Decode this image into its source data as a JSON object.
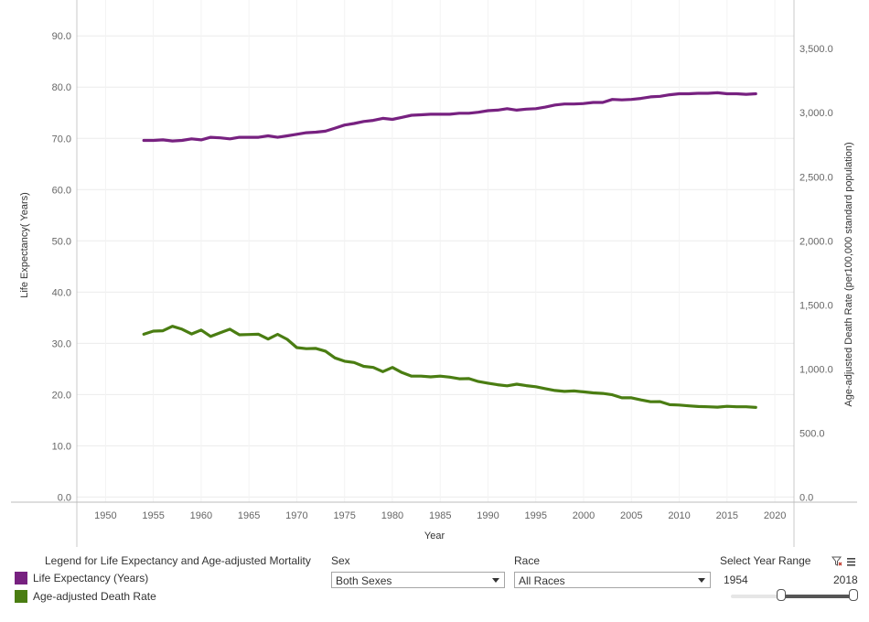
{
  "chart_data": {
    "type": "line",
    "x_axis": {
      "label": "Year",
      "range": [
        1947,
        2022
      ],
      "ticks": [
        1950,
        1955,
        1960,
        1965,
        1970,
        1975,
        1980,
        1985,
        1990,
        1995,
        2000,
        2005,
        2010,
        2015,
        2020
      ]
    },
    "y_left": {
      "label": "Life Expectancy( Years)",
      "range": [
        -1,
        97
      ],
      "ticks": [
        0,
        10,
        20,
        30,
        40,
        50,
        60,
        70,
        80,
        90
      ],
      "tick_labels": [
        "0.0",
        "10.0",
        "20.0",
        "30.0",
        "40.0",
        "50.0",
        "60.0",
        "70.0",
        "80.0",
        "90.0"
      ]
    },
    "y_right": {
      "label": "Age-adjusted Death Rate (per100,000 standard population)",
      "range": [
        -40,
        3880
      ],
      "ticks": [
        0,
        500,
        1000,
        1500,
        2000,
        2500,
        3000,
        3500
      ],
      "tick_labels": [
        "0.0",
        "500.0",
        "1,000.0",
        "1,500.0",
        "2,000.0",
        "2,500.0",
        "3,000.0",
        "3,500.0"
      ]
    },
    "series": [
      {
        "name": "Life Expectancy (Years)",
        "axis": "left",
        "color": "#772180",
        "x": [
          1954,
          1955,
          1956,
          1957,
          1958,
          1959,
          1960,
          1961,
          1962,
          1963,
          1964,
          1965,
          1966,
          1967,
          1968,
          1969,
          1970,
          1971,
          1972,
          1973,
          1974,
          1975,
          1976,
          1977,
          1978,
          1979,
          1980,
          1981,
          1982,
          1983,
          1984,
          1985,
          1986,
          1987,
          1988,
          1989,
          1990,
          1991,
          1992,
          1993,
          1994,
          1995,
          1996,
          1997,
          1998,
          1999,
          2000,
          2001,
          2002,
          2003,
          2004,
          2005,
          2006,
          2007,
          2008,
          2009,
          2010,
          2011,
          2012,
          2013,
          2014,
          2015,
          2016,
          2017,
          2018
        ],
        "values": [
          69.6,
          69.6,
          69.7,
          69.5,
          69.6,
          69.9,
          69.7,
          70.2,
          70.1,
          69.9,
          70.2,
          70.2,
          70.2,
          70.5,
          70.2,
          70.5,
          70.8,
          71.1,
          71.2,
          71.4,
          72.0,
          72.6,
          72.9,
          73.3,
          73.5,
          73.9,
          73.7,
          74.1,
          74.5,
          74.6,
          74.7,
          74.7,
          74.7,
          74.9,
          74.9,
          75.1,
          75.4,
          75.5,
          75.8,
          75.5,
          75.7,
          75.8,
          76.1,
          76.5,
          76.7,
          76.7,
          76.8,
          77.0,
          77.0,
          77.6,
          77.5,
          77.6,
          77.8,
          78.1,
          78.2,
          78.5,
          78.7,
          78.7,
          78.8,
          78.8,
          78.9,
          78.7,
          78.7,
          78.6,
          78.7
        ]
      },
      {
        "name": "Age-adjusted Death Rate",
        "axis": "right",
        "color": "#4a7d12",
        "x": [
          1954,
          1955,
          1956,
          1957,
          1958,
          1959,
          1960,
          1961,
          1962,
          1963,
          1964,
          1965,
          1966,
          1967,
          1968,
          1969,
          1970,
          1971,
          1972,
          1973,
          1974,
          1975,
          1976,
          1977,
          1978,
          1979,
          1980,
          1981,
          1982,
          1983,
          1984,
          1985,
          1986,
          1987,
          1988,
          1989,
          1990,
          1991,
          1992,
          1993,
          1994,
          1995,
          1996,
          1997,
          1998,
          1999,
          2000,
          2001,
          2002,
          2003,
          2004,
          2005,
          2006,
          2007,
          2008,
          2009,
          2010,
          2011,
          2012,
          2013,
          2014,
          2015,
          2016,
          2017,
          2018
        ],
        "values": [
          1271,
          1295,
          1298,
          1333,
          1310,
          1273,
          1304,
          1254,
          1283,
          1310,
          1267,
          1269,
          1271,
          1233,
          1270,
          1231,
          1167,
          1158,
          1160,
          1139,
          1086,
          1060,
          1050,
          1020,
          1012,
          979,
          1012,
          972,
          944,
          944,
          938,
          944,
          936,
          923,
          925,
          902,
          889,
          877,
          868,
          881,
          870,
          861,
          846,
          832,
          825,
          828,
          821,
          813,
          809,
          798,
          775,
          775,
          758,
          744,
          745,
          721,
          718,
          712,
          707,
          705,
          702,
          708,
          705,
          705,
          700
        ]
      }
    ]
  },
  "legend": {
    "title": "Legend for Life Expectancy and Age-adjusted Mortality",
    "items": [
      {
        "label": "Life Expectancy (Years)",
        "color": "#772180"
      },
      {
        "label": "Age-adjusted Death Rate",
        "color": "#4a7d12"
      }
    ]
  },
  "filters": {
    "sex": {
      "label": "Sex",
      "value": "Both Sexes"
    },
    "race": {
      "label": "Race",
      "value": "All Races"
    },
    "year_range": {
      "label": "Select Year Range",
      "start": "1954",
      "end": "2018",
      "start_value": 1954,
      "end_value": 2018,
      "min": 1900,
      "max": 2018
    }
  },
  "icons": {
    "clear_filter": "clear-filter-icon",
    "menu": "menu-icon"
  }
}
